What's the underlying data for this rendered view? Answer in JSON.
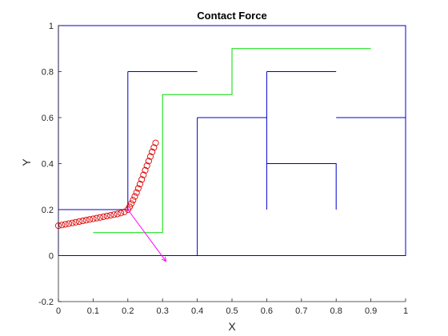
{
  "chart_data": {
    "type": "line",
    "title": "Contact Force",
    "xlabel": "X",
    "ylabel": "Y",
    "xlim": [
      0,
      1
    ],
    "ylim": [
      -0.2,
      1
    ],
    "xticks": [
      "0",
      "0.1",
      "0.2",
      "0.3",
      "0.4",
      "0.5",
      "0.6",
      "0.7",
      "0.8",
      "0.9",
      "1"
    ],
    "xtick_values": [
      0,
      0.1,
      0.2,
      0.3,
      0.4,
      0.5,
      0.6,
      0.7,
      0.8,
      0.9,
      1
    ],
    "yticks": [
      "-0.2",
      "0",
      "0.2",
      "0.4",
      "0.6",
      "0.8",
      "1"
    ],
    "ytick_values": [
      -0.2,
      0,
      0.2,
      0.4,
      0.6,
      0.8,
      1
    ],
    "grid": false,
    "colors": {
      "walls": "#0000cc",
      "path": "#00dd00",
      "markers": "#dd0000",
      "force": "#ff00ff",
      "axes": "#262626"
    },
    "walls": [
      {
        "x": [
          0,
          0.2,
          0.2
        ],
        "y": [
          0.2,
          0.2,
          0.8
        ]
      },
      {
        "x": [
          0.2,
          0.4
        ],
        "y": [
          0.8,
          0.8
        ]
      },
      {
        "x": [
          0.4,
          0.4
        ],
        "y": [
          0,
          0.6
        ]
      },
      {
        "x": [
          0.4,
          0.6
        ],
        "y": [
          0.6,
          0.6
        ]
      },
      {
        "x": [
          0.6,
          0.6
        ],
        "y": [
          0.2,
          0.8
        ]
      },
      {
        "x": [
          0.6,
          0.8
        ],
        "y": [
          0.8,
          0.8
        ]
      },
      {
        "x": [
          0.6,
          0.8,
          0.8
        ],
        "y": [
          0.4,
          0.4,
          0.2
        ]
      },
      {
        "x": [
          0.8,
          1.0
        ],
        "y": [
          0.6,
          0.6
        ]
      },
      {
        "x": [
          0,
          1.0
        ],
        "y": [
          0,
          0
        ]
      },
      {
        "x": [
          0,
          1,
          1,
          0,
          0
        ],
        "y": [
          0,
          0,
          1,
          1,
          0
        ]
      }
    ],
    "path": {
      "x": [
        0.1,
        0.3,
        0.3,
        0.5,
        0.5,
        0.9
      ],
      "y": [
        0.1,
        0.1,
        0.7,
        0.7,
        0.9,
        0.9
      ]
    },
    "markers": {
      "x": [
        0.0,
        0.01,
        0.02,
        0.03,
        0.04,
        0.05,
        0.06,
        0.07,
        0.08,
        0.09,
        0.1,
        0.11,
        0.12,
        0.13,
        0.14,
        0.15,
        0.16,
        0.17,
        0.18,
        0.19,
        0.2,
        0.205,
        0.21,
        0.215,
        0.22,
        0.225,
        0.23,
        0.235,
        0.24,
        0.245,
        0.25,
        0.255,
        0.26,
        0.265,
        0.27,
        0.275,
        0.28
      ],
      "y": [
        0.13,
        0.133,
        0.136,
        0.139,
        0.142,
        0.145,
        0.148,
        0.151,
        0.154,
        0.157,
        0.16,
        0.163,
        0.166,
        0.169,
        0.172,
        0.175,
        0.178,
        0.181,
        0.185,
        0.19,
        0.2,
        0.212,
        0.226,
        0.241,
        0.257,
        0.274,
        0.292,
        0.311,
        0.331,
        0.351,
        0.371,
        0.391,
        0.411,
        0.431,
        0.451,
        0.47,
        0.49
      ]
    },
    "force_arrow": {
      "x": [
        0.2,
        0.31
      ],
      "y": [
        0.2,
        -0.025
      ]
    }
  }
}
